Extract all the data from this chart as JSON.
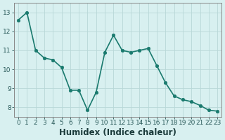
{
  "x": [
    0,
    1,
    2,
    3,
    4,
    5,
    6,
    7,
    8,
    9,
    10,
    11,
    12,
    13,
    14,
    15,
    16,
    17,
    18,
    19,
    20,
    21,
    22,
    23
  ],
  "y": [
    12.6,
    13.0,
    11.0,
    10.6,
    10.5,
    10.1,
    8.9,
    8.9,
    7.85,
    8.8,
    10.9,
    11.8,
    11.0,
    10.9,
    11.0,
    11.1,
    10.2,
    9.3,
    8.6,
    8.4,
    8.3,
    8.1,
    7.85,
    7.8
  ],
  "line_color": "#1a7a6e",
  "marker_color": "#1a7a6e",
  "bg_color": "#d8f0f0",
  "grid_color": "#b8d8d8",
  "axis_color": "#888888",
  "xlabel": "Humidex (Indice chaleur)",
  "ylim": [
    7.5,
    13.5
  ],
  "xlim": [
    -0.5,
    23.5
  ],
  "yticks": [
    8,
    9,
    10,
    11,
    12,
    13
  ],
  "xticks": [
    0,
    1,
    2,
    3,
    4,
    5,
    6,
    7,
    8,
    9,
    10,
    11,
    12,
    13,
    14,
    15,
    16,
    17,
    18,
    19,
    20,
    21,
    22,
    23
  ],
  "tick_fontsize": 6.5,
  "xlabel_fontsize": 8.5,
  "linewidth": 1.2,
  "markersize": 3.2
}
